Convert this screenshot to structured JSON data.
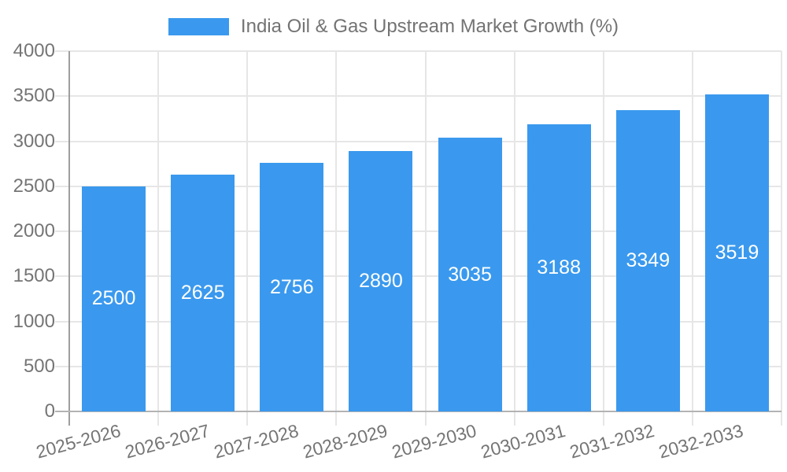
{
  "chart_data": {
    "type": "bar",
    "title": "India Oil & Gas Upstream Market Growth (%)",
    "categories": [
      "2025-2026",
      "2026-2027",
      "2027-2028",
      "2028-2029",
      "2029-2030",
      "2030-2031",
      "2031-2032",
      "2032-2033"
    ],
    "values": [
      2500,
      2625,
      2756,
      2890,
      3035,
      3188,
      3349,
      3519
    ],
    "xlabel": "",
    "ylabel": "",
    "ylim": [
      0,
      4000
    ],
    "yticks": [
      0,
      500,
      1000,
      1500,
      2000,
      2500,
      3000,
      3500,
      4000
    ],
    "grid": true,
    "legend_position": "top",
    "bar_labels_inside": true,
    "colors": {
      "bar": "#3a99ee",
      "grid": "#e6e6e6",
      "y_axis_line": "#9e9e9e",
      "x_axis_line": "#b3b3b3",
      "tick_label": "#757575",
      "bar_label": "#ffffff",
      "legend_text": "#737373"
    }
  }
}
